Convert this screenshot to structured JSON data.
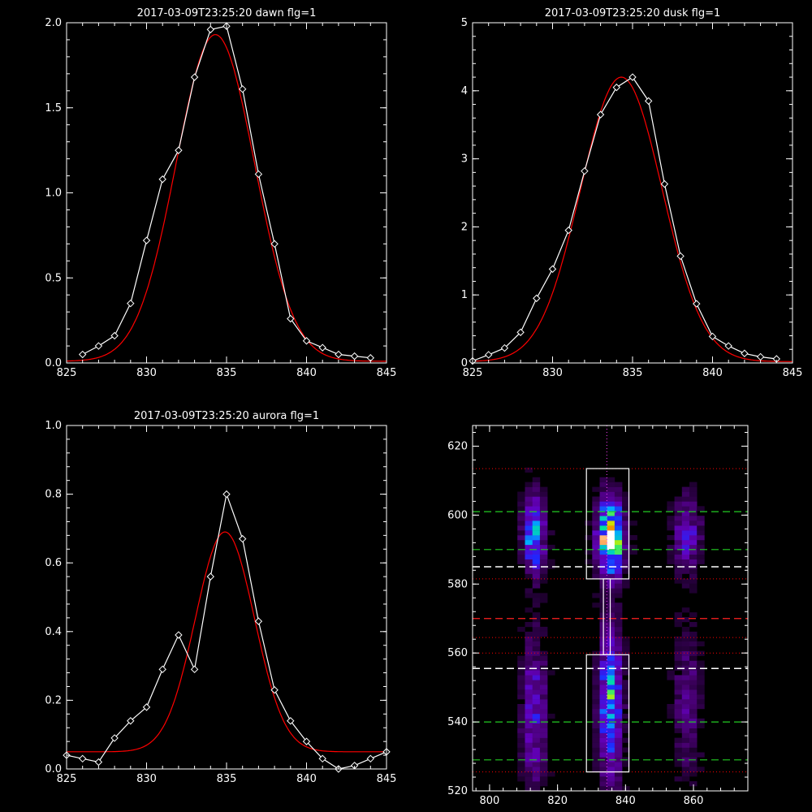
{
  "colors": {
    "background": "#000000",
    "axes": "#ffffff",
    "data": "#ffffff",
    "fit": "#ff0000",
    "green": "#22cc22",
    "red_dash": "#ff2020",
    "white_dash": "#ffffff",
    "dotted": "#ff40ff"
  },
  "chart_data": [
    {
      "type": "line",
      "title": "2017-03-09T23:25:20 dawn flg=1",
      "xlim": [
        825,
        845
      ],
      "ylim": [
        0,
        2.0
      ],
      "xticks": [
        825,
        830,
        835,
        840,
        845
      ],
      "yticks": [
        0,
        0.5,
        1.0,
        1.5,
        2.0
      ],
      "ytick_labels": [
        "0.0",
        "0.5",
        "1.0",
        "1.5",
        "2.0"
      ],
      "series": [
        {
          "x": [
            826,
            827,
            828,
            829,
            830,
            831,
            832,
            833,
            834,
            835,
            836,
            837,
            838,
            839,
            840,
            841,
            842,
            843,
            844
          ],
          "y": [
            0.05,
            0.1,
            0.16,
            0.35,
            0.72,
            1.08,
            1.25,
            1.68,
            1.96,
            1.98,
            1.61,
            1.11,
            0.7,
            0.26,
            0.13,
            0.09,
            0.05,
            0.04,
            0.03
          ]
        }
      ],
      "fit": {
        "amp": 1.92,
        "center": 834.3,
        "sigma": 2.45,
        "offset": 0.01
      }
    },
    {
      "type": "line",
      "title": "2017-03-09T23:25:20 dusk flg=1",
      "xlim": [
        825,
        845
      ],
      "ylim": [
        0,
        5
      ],
      "xticks": [
        825,
        830,
        835,
        840,
        845
      ],
      "yticks": [
        0,
        1,
        2,
        3,
        4,
        5
      ],
      "ytick_labels": [
        "0",
        "1",
        "2",
        "3",
        "4",
        "5"
      ],
      "series": [
        {
          "x": [
            825,
            826,
            827,
            828,
            829,
            830,
            831,
            832,
            833,
            834,
            835,
            836,
            837,
            838,
            839,
            840,
            841,
            842,
            843,
            844
          ],
          "y": [
            0.03,
            0.12,
            0.22,
            0.45,
            0.95,
            1.38,
            1.95,
            2.82,
            3.65,
            4.05,
            4.2,
            3.85,
            2.63,
            1.57,
            0.87,
            0.39,
            0.25,
            0.14,
            0.09,
            0.06
          ]
        }
      ],
      "fit": {
        "amp": 4.18,
        "center": 834.3,
        "sigma": 2.55,
        "offset": 0.02
      }
    },
    {
      "type": "line",
      "title": "2017-03-09T23:25:20 aurora flg=1",
      "xlim": [
        825,
        845
      ],
      "ylim": [
        0,
        1.0
      ],
      "xticks": [
        825,
        830,
        835,
        840,
        845
      ],
      "yticks": [
        0,
        0.2,
        0.4,
        0.6,
        0.8,
        1.0
      ],
      "ytick_labels": [
        "0.0",
        "0.2",
        "0.4",
        "0.6",
        "0.8",
        "1.0"
      ],
      "series": [
        {
          "x": [
            825,
            826,
            827,
            828,
            829,
            830,
            831,
            832,
            833,
            834,
            835,
            836,
            837,
            838,
            839,
            840,
            841,
            842,
            843,
            844,
            845
          ],
          "y": [
            0.04,
            0.03,
            0.02,
            0.09,
            0.14,
            0.18,
            0.29,
            0.39,
            0.29,
            0.56,
            0.8,
            0.67,
            0.43,
            0.23,
            0.14,
            0.08,
            0.03,
            0.0,
            0.01,
            0.03,
            0.05
          ]
        }
      ],
      "fit": {
        "amp": 0.64,
        "center": 834.9,
        "sigma": 1.85,
        "offset": 0.05
      }
    },
    {
      "type": "heatmap",
      "title": "",
      "xlim": [
        795,
        876
      ],
      "ylim": [
        520,
        626
      ],
      "xticks": [
        800,
        820,
        840,
        860
      ],
      "yticks": [
        520,
        540,
        560,
        580,
        600,
        620
      ],
      "blobs": [
        {
          "x": 834.5,
          "y": 593,
          "sx": 2.4,
          "sy": 7,
          "amp": 1.0
        },
        {
          "x": 834.5,
          "y": 545,
          "sx": 2.2,
          "sy": 14,
          "amp": 0.55
        },
        {
          "x": 812,
          "y": 594,
          "sx": 2.0,
          "sy": 7,
          "amp": 0.6
        },
        {
          "x": 812,
          "y": 542,
          "sx": 2.3,
          "sy": 14,
          "amp": 0.3
        },
        {
          "x": 857,
          "y": 594,
          "sx": 2.5,
          "sy": 7,
          "amp": 0.3
        },
        {
          "x": 857,
          "y": 545,
          "sx": 2.5,
          "sy": 14,
          "amp": 0.18
        }
      ],
      "boxes": [
        {
          "x0": 828.5,
          "x1": 841,
          "y0": 581.5,
          "y1": 613.5
        },
        {
          "x0": 828.5,
          "x1": 841,
          "y0": 525.5,
          "y1": 559.5
        },
        {
          "x0": 833.5,
          "x1": 835.5,
          "y0": 559.5,
          "y1": 581.5
        }
      ],
      "green_lines": [
        601,
        590,
        540,
        529
      ],
      "white_dash_lines": [
        585,
        555.5
      ],
      "red_dash_lines": [
        570
      ],
      "red_dot_lines": [
        560,
        564.5,
        581.5,
        525.5,
        613.5
      ],
      "vline": 834.5
    }
  ]
}
